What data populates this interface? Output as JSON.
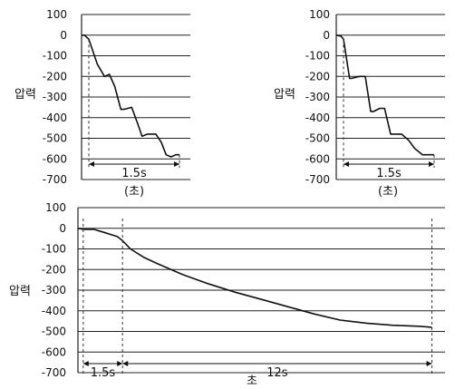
{
  "chart_data": [
    {
      "id": "top-left",
      "type": "line",
      "ylabel": "압력",
      "xlabel": "(초)",
      "ylim": [
        -700,
        100
      ],
      "yticks": [
        100,
        0,
        -100,
        -200,
        -300,
        -400,
        -500,
        -600,
        -700
      ],
      "xlim": [
        0,
        1.8
      ],
      "x": [
        0,
        0.05,
        0.12,
        0.26,
        0.38,
        0.46,
        0.55,
        0.65,
        0.7,
        0.83,
        0.93,
        1.0,
        1.09,
        1.23,
        1.32,
        1.4,
        1.48,
        1.56,
        1.62
      ],
      "y": [
        0,
        0,
        -20,
        -140,
        -200,
        -190,
        -250,
        -360,
        -360,
        -350,
        -430,
        -490,
        -480,
        -480,
        -520,
        -580,
        -590,
        -580,
        -580
      ],
      "span_start": 0.12,
      "span_end": 1.62,
      "span_label": "1.5s",
      "grid": true
    },
    {
      "id": "top-right",
      "type": "line",
      "ylabel": "압력",
      "xlabel": "(초)",
      "ylim": [
        -700,
        100
      ],
      "yticks": [
        100,
        0,
        -100,
        -200,
        -300,
        -400,
        -500,
        -600,
        -700
      ],
      "xlim": [
        0,
        1.8
      ],
      "x": [
        0,
        0.08,
        0.12,
        0.22,
        0.25,
        0.38,
        0.48,
        0.57,
        0.62,
        0.72,
        0.8,
        0.9,
        0.96,
        1.08,
        1.2,
        1.3,
        1.43,
        1.62
      ],
      "y": [
        0,
        -5,
        -20,
        -210,
        -210,
        -200,
        -200,
        -370,
        -370,
        -355,
        -355,
        -480,
        -480,
        -480,
        -510,
        -550,
        -580,
        -580
      ],
      "span_start": 0.12,
      "span_end": 1.62,
      "span_label": "1.5s",
      "grid": true
    },
    {
      "id": "bottom",
      "type": "line",
      "ylabel": "압력",
      "xlabel": "초",
      "ylim": [
        -700,
        100
      ],
      "yticks": [
        100,
        0,
        -100,
        -200,
        -300,
        -400,
        -500,
        -600,
        -700
      ],
      "xlim": [
        0,
        14
      ],
      "x": [
        0,
        0.2,
        0.6,
        1.0,
        1.5,
        1.7,
        2.0,
        2.5,
        3.0,
        4.0,
        5.0,
        6.0,
        7.0,
        8.0,
        9.0,
        10.0,
        11.0,
        12.0,
        13.0,
        13.5
      ],
      "y": [
        0,
        -5,
        -5,
        -20,
        -40,
        -60,
        -100,
        -140,
        -170,
        -225,
        -270,
        -310,
        -345,
        -380,
        -415,
        -445,
        -460,
        -470,
        -475,
        -480
      ],
      "markers": [
        0.2,
        1.7,
        13.5
      ],
      "spans": [
        {
          "from": 0.2,
          "to": 1.7,
          "label": "1.5s"
        },
        {
          "from": 1.7,
          "to": 13.5,
          "label": "12s"
        }
      ],
      "grid": true
    }
  ]
}
